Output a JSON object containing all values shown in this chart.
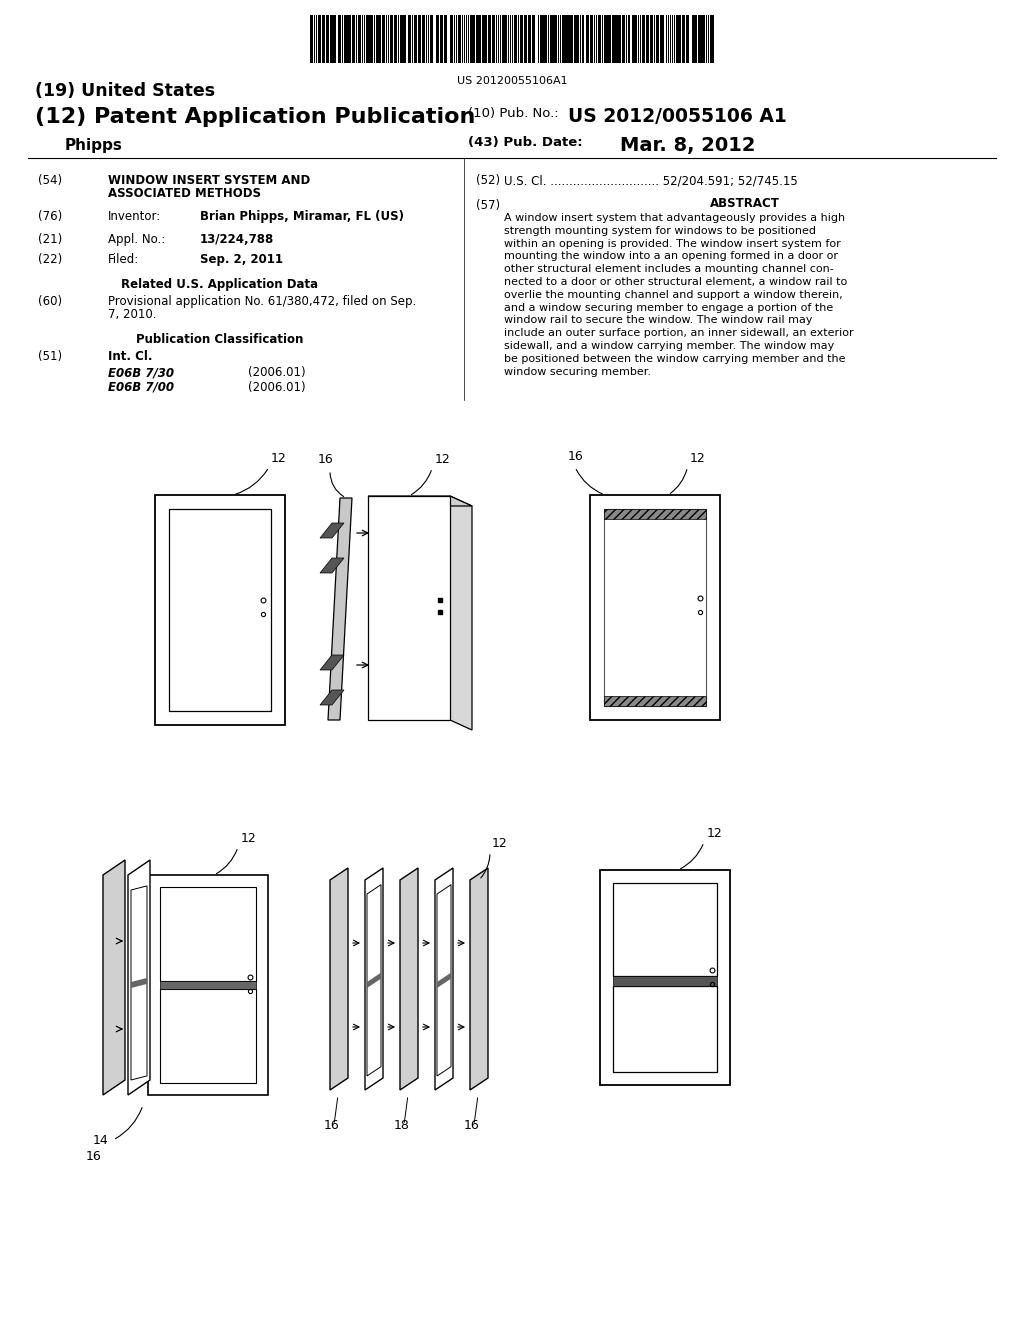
{
  "bg": "#ffffff",
  "barcode_text": "US 20120055106A1",
  "h_united": "(19) United States",
  "h_patent": "(12) Patent Application Publication",
  "h_phipps": "Phipps",
  "h_pubno_lbl": "(10) Pub. No.:",
  "h_pubno_val": "US 2012/0055106 A1",
  "h_pubdate_lbl": "(43) Pub. Date:",
  "h_pubdate_val": "Mar. 8, 2012",
  "f54_lbl": "(54)",
  "f54_line1": "WINDOW INSERT SYSTEM AND",
  "f54_line2": "ASSOCIATED METHODS",
  "f52_lbl": "(52)",
  "f52_text": "U.S. Cl. ............................. 52/204.591; 52/745.15",
  "f76_lbl": "(76)",
  "f76_key": "Inventor:",
  "f76_val": "Brian Phipps, Miramar, FL (US)",
  "f57_lbl": "(57)",
  "f57_title": "ABSTRACT",
  "abstract_lines": [
    "A window insert system that advantageously provides a high",
    "strength mounting system for windows to be positioned",
    "within an opening is provided. The window insert system for",
    "mounting the window into a an opening formed in a door or",
    "other structural element includes a mounting channel con-",
    "nected to a door or other structural element, a window rail to",
    "overlie the mounting channel and support a window therein,",
    "and a window securing member to engage a portion of the",
    "window rail to secure the window. The window rail may",
    "include an outer surface portion, an inner sidewall, an exterior",
    "sidewall, and a window carrying member. The window may",
    "be positioned between the window carrying member and the",
    "window securing member."
  ],
  "f21_lbl": "(21)",
  "f21_key": "Appl. No.:",
  "f21_val": "13/224,788",
  "f22_lbl": "(22)",
  "f22_key": "Filed:",
  "f22_val": "Sep. 2, 2011",
  "rel_title": "Related U.S. Application Data",
  "f60_lbl": "(60)",
  "f60_line1": "Provisional application No. 61/380,472, filed on Sep.",
  "f60_line2": "7, 2010.",
  "pub_class_title": "Publication Classification",
  "f51_lbl": "(51)",
  "f51_key": "Int. Cl.",
  "f51_e1": "E06B 7/30",
  "f51_e1_date": "(2006.01)",
  "f51_e2": "E06B 7/00",
  "f51_e2_date": "(2006.01)"
}
